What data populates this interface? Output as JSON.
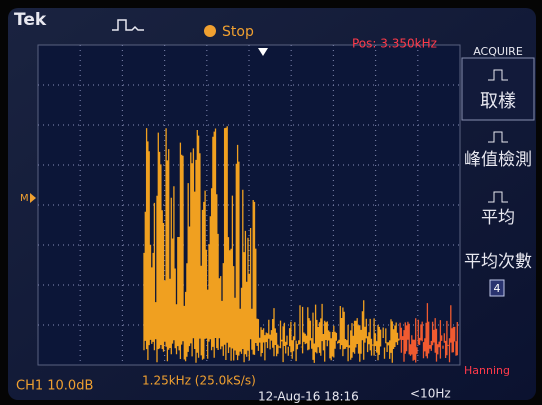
{
  "header": {
    "brand": "Tek",
    "status": "Stop",
    "position": "Pos: 3.350kHz"
  },
  "marker": "M",
  "menu": {
    "title": "ACQUIRE",
    "items": [
      "取樣",
      "峰值檢測",
      "平均",
      "平均次數"
    ],
    "average_count": "4"
  },
  "footer": {
    "channel": "CH1 10.0dB",
    "span": "1.25kHz (25.0kS/s)",
    "date": "12-Aug-16 18:16",
    "trigger": "<10Hz",
    "window": "Hanning"
  }
}
